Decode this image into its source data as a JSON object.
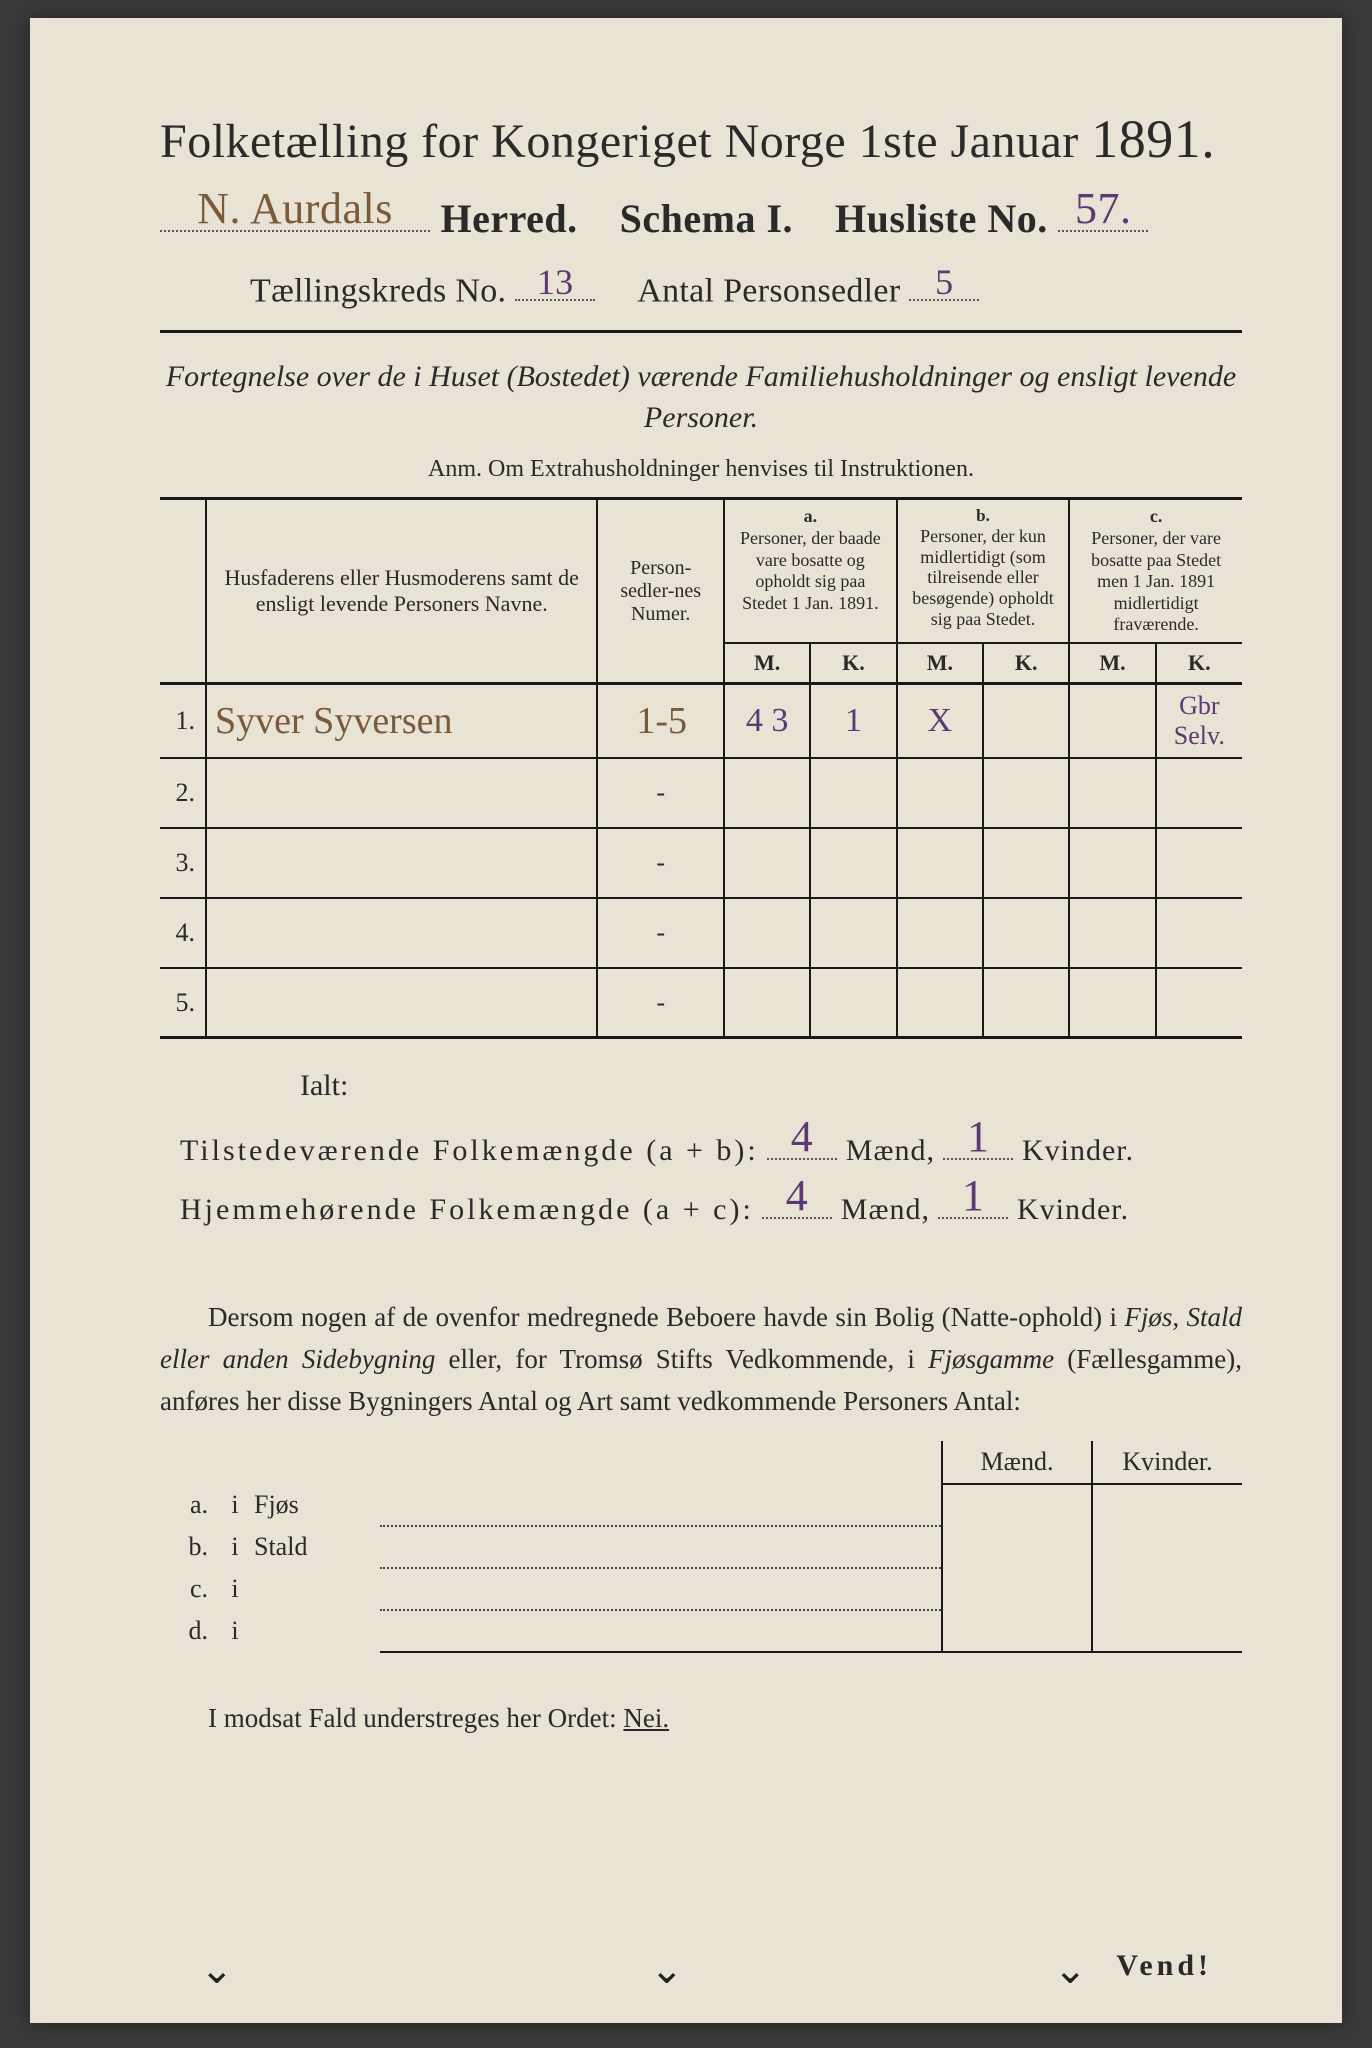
{
  "colors": {
    "paper": "#e8e3d4",
    "ink": "#2a2a2a",
    "handwriting_purple": "#5a3a70",
    "handwriting_brown": "#7a5a3a",
    "page_bg": "#3a3a3a"
  },
  "header": {
    "title_main": "Folketælling for Kongeriget Norge 1ste Januar",
    "year": "1891.",
    "herred_value": "N. Aurdals",
    "herred_label": "Herred.",
    "schema_label": "Schema I.",
    "husliste_label": "Husliste No.",
    "husliste_value": "57.",
    "kreds_label": "Tællingskreds No.",
    "kreds_value": "13",
    "antal_label": "Antal Personsedler",
    "antal_value": "5"
  },
  "subtitle": {
    "line": "Fortegnelse over de i Huset (Bostedet) værende Familiehusholdninger og ensligt levende Personer.",
    "anm": "Anm.  Om Extrahusholdninger henvises til Instruktionen."
  },
  "table": {
    "col_names_header": {
      "names": "Husfaderens eller Husmoderens samt de ensligt levende Personers Navne.",
      "numer": "Person-sedler-nes Numer.",
      "a_label": "a.",
      "a_text": "Personer, der baade vare bosatte og opholdt sig paa Stedet 1 Jan. 1891.",
      "b_label": "b.",
      "b_text": "Personer, der kun midlertidigt (som tilreisende eller besøgende) opholdt sig paa Stedet.",
      "c_label": "c.",
      "c_text": "Personer, der vare bosatte paa Stedet men 1 Jan. 1891 midlertidigt fraværende.",
      "m": "M.",
      "k": "K."
    },
    "rows": [
      {
        "n": "1.",
        "name": "Syver Syversen",
        "numer": "1-5",
        "a_m": "4 3",
        "a_k": "1",
        "b_m": "X",
        "b_k": "",
        "c_m": "",
        "c_k": "Gbr Selv."
      },
      {
        "n": "2.",
        "name": "",
        "numer": "-",
        "a_m": "",
        "a_k": "",
        "b_m": "",
        "b_k": "",
        "c_m": "",
        "c_k": ""
      },
      {
        "n": "3.",
        "name": "",
        "numer": "-",
        "a_m": "",
        "a_k": "",
        "b_m": "",
        "b_k": "",
        "c_m": "",
        "c_k": ""
      },
      {
        "n": "4.",
        "name": "",
        "numer": "-",
        "a_m": "",
        "a_k": "",
        "b_m": "",
        "b_k": "",
        "c_m": "",
        "c_k": ""
      },
      {
        "n": "5.",
        "name": "",
        "numer": "-",
        "a_m": "",
        "a_k": "",
        "b_m": "",
        "b_k": "",
        "c_m": "",
        "c_k": ""
      }
    ]
  },
  "ialt": {
    "ialt": "Ialt:",
    "line1_label": "Tilstedeværende Folkemængde (a + b):",
    "line1_m": "4",
    "line1_k": "1",
    "line2_label": "Hjemmehørende Folkemængde (a + c):",
    "line2_m": "4",
    "line2_k": "1",
    "maend": "Mænd,",
    "kvinder": "Kvinder."
  },
  "paragraph": "Dersom nogen af de ovenfor medregnede Beboere havde sin Bolig (Natte-ophold) i Fjøs, Stald eller anden Sidebygning eller, for Tromsø Stifts Vedkommende, i Fjøsgamme (Fællesgamme), anføres her disse Bygningers Antal og Art samt vedkommende Personers Antal:",
  "mk_table": {
    "maend": "Mænd.",
    "kvinder": "Kvinder.",
    "rows": [
      {
        "lbl": "a.",
        "i": "i",
        "type": "Fjøs"
      },
      {
        "lbl": "b.",
        "i": "i",
        "type": "Stald"
      },
      {
        "lbl": "c.",
        "i": "i",
        "type": ""
      },
      {
        "lbl": "d.",
        "i": "i",
        "type": ""
      }
    ]
  },
  "nei_line": {
    "pre": "I modsat Fald understreges her Ordet: ",
    "nei": "Nei."
  },
  "vend": "Vend!"
}
